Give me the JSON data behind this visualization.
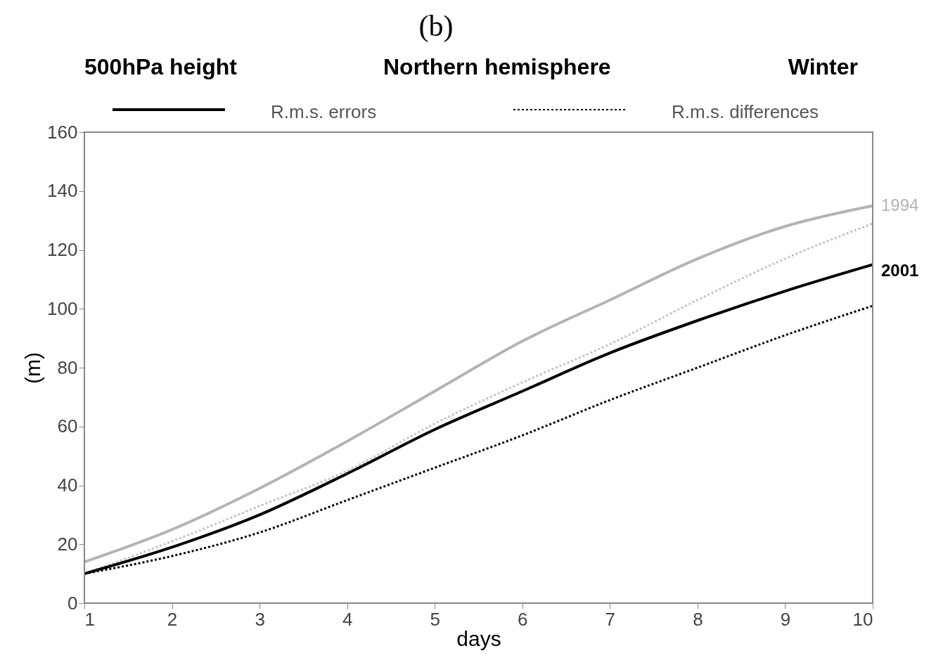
{
  "chart_data": {
    "type": "line",
    "title": "(b)",
    "xlabel": "days",
    "ylabel": "(m)",
    "x": [
      1,
      2,
      3,
      4,
      5,
      6,
      7,
      8,
      9,
      10
    ],
    "xlim": [
      1,
      10
    ],
    "xticks": [
      1,
      2,
      3,
      4,
      5,
      6,
      7,
      8,
      9,
      10
    ],
    "ylim": [
      0,
      160
    ],
    "yticks": [
      0,
      20,
      40,
      60,
      80,
      100,
      120,
      140,
      160
    ],
    "grid": false,
    "legend": "top",
    "marker": "none",
    "annotations": [
      "500hPa height",
      "Northern hemisphere",
      "Winter",
      "R.m.s. errors",
      "R.m.s. differences"
    ],
    "series": [
      {
        "name": "1994",
        "color": "#b4b4b4",
        "line_style": "solid",
        "values": [
          14,
          25,
          39,
          55,
          72,
          89,
          103,
          117,
          128,
          135
        ]
      },
      {
        "color": "#c4c4c4",
        "line_style": "dotted",
        "values": [
          10,
          21,
          33,
          45,
          61,
          75,
          88,
          103,
          117,
          129
        ]
      },
      {
        "name": "2001",
        "color": "#000000",
        "line_style": "solid",
        "values": [
          10,
          19,
          30,
          44,
          59,
          72,
          85,
          96,
          106,
          115
        ]
      },
      {
        "color": "#000000",
        "line_style": "dotted",
        "values": [
          10,
          16,
          24,
          35,
          46,
          57,
          69,
          80,
          91,
          101
        ]
      }
    ]
  }
}
